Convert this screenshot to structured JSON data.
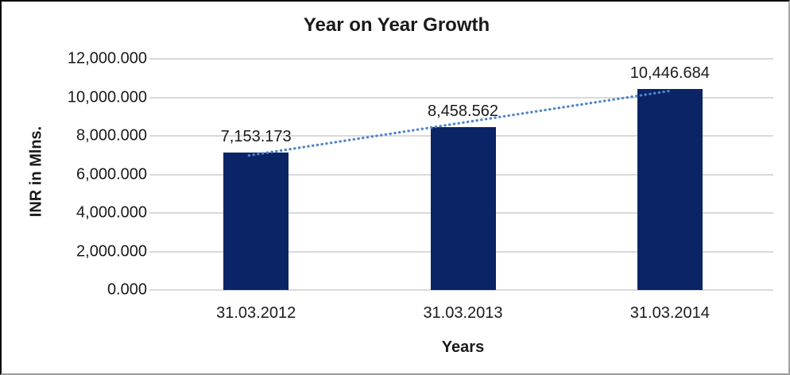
{
  "chart_data": {
    "type": "bar",
    "title": "Year on Year Growth",
    "xlabel": "Years",
    "ylabel": "INR in Mlns.",
    "categories": [
      "31.03.2012",
      "31.03.2013",
      "31.03.2014"
    ],
    "values": [
      7153.173,
      8458.562,
      10446.684
    ],
    "value_labels": [
      "7,153.173",
      "8,458.562",
      "10,446.684"
    ],
    "y_ticks": [
      0,
      2000,
      4000,
      6000,
      8000,
      10000,
      12000
    ],
    "y_tick_labels": [
      "0.000",
      "2,000.000",
      "4,000.000",
      "6,000.000",
      "8,000.000",
      "10,000.000",
      "12,000.000"
    ],
    "ylim": [
      0,
      12000
    ],
    "grid": true,
    "legend": "none",
    "trendline": true,
    "colors": {
      "bar": "#0a2466",
      "trendline": "#4e86c6",
      "gridline": "#d9d9d9",
      "text": "#000000"
    }
  }
}
